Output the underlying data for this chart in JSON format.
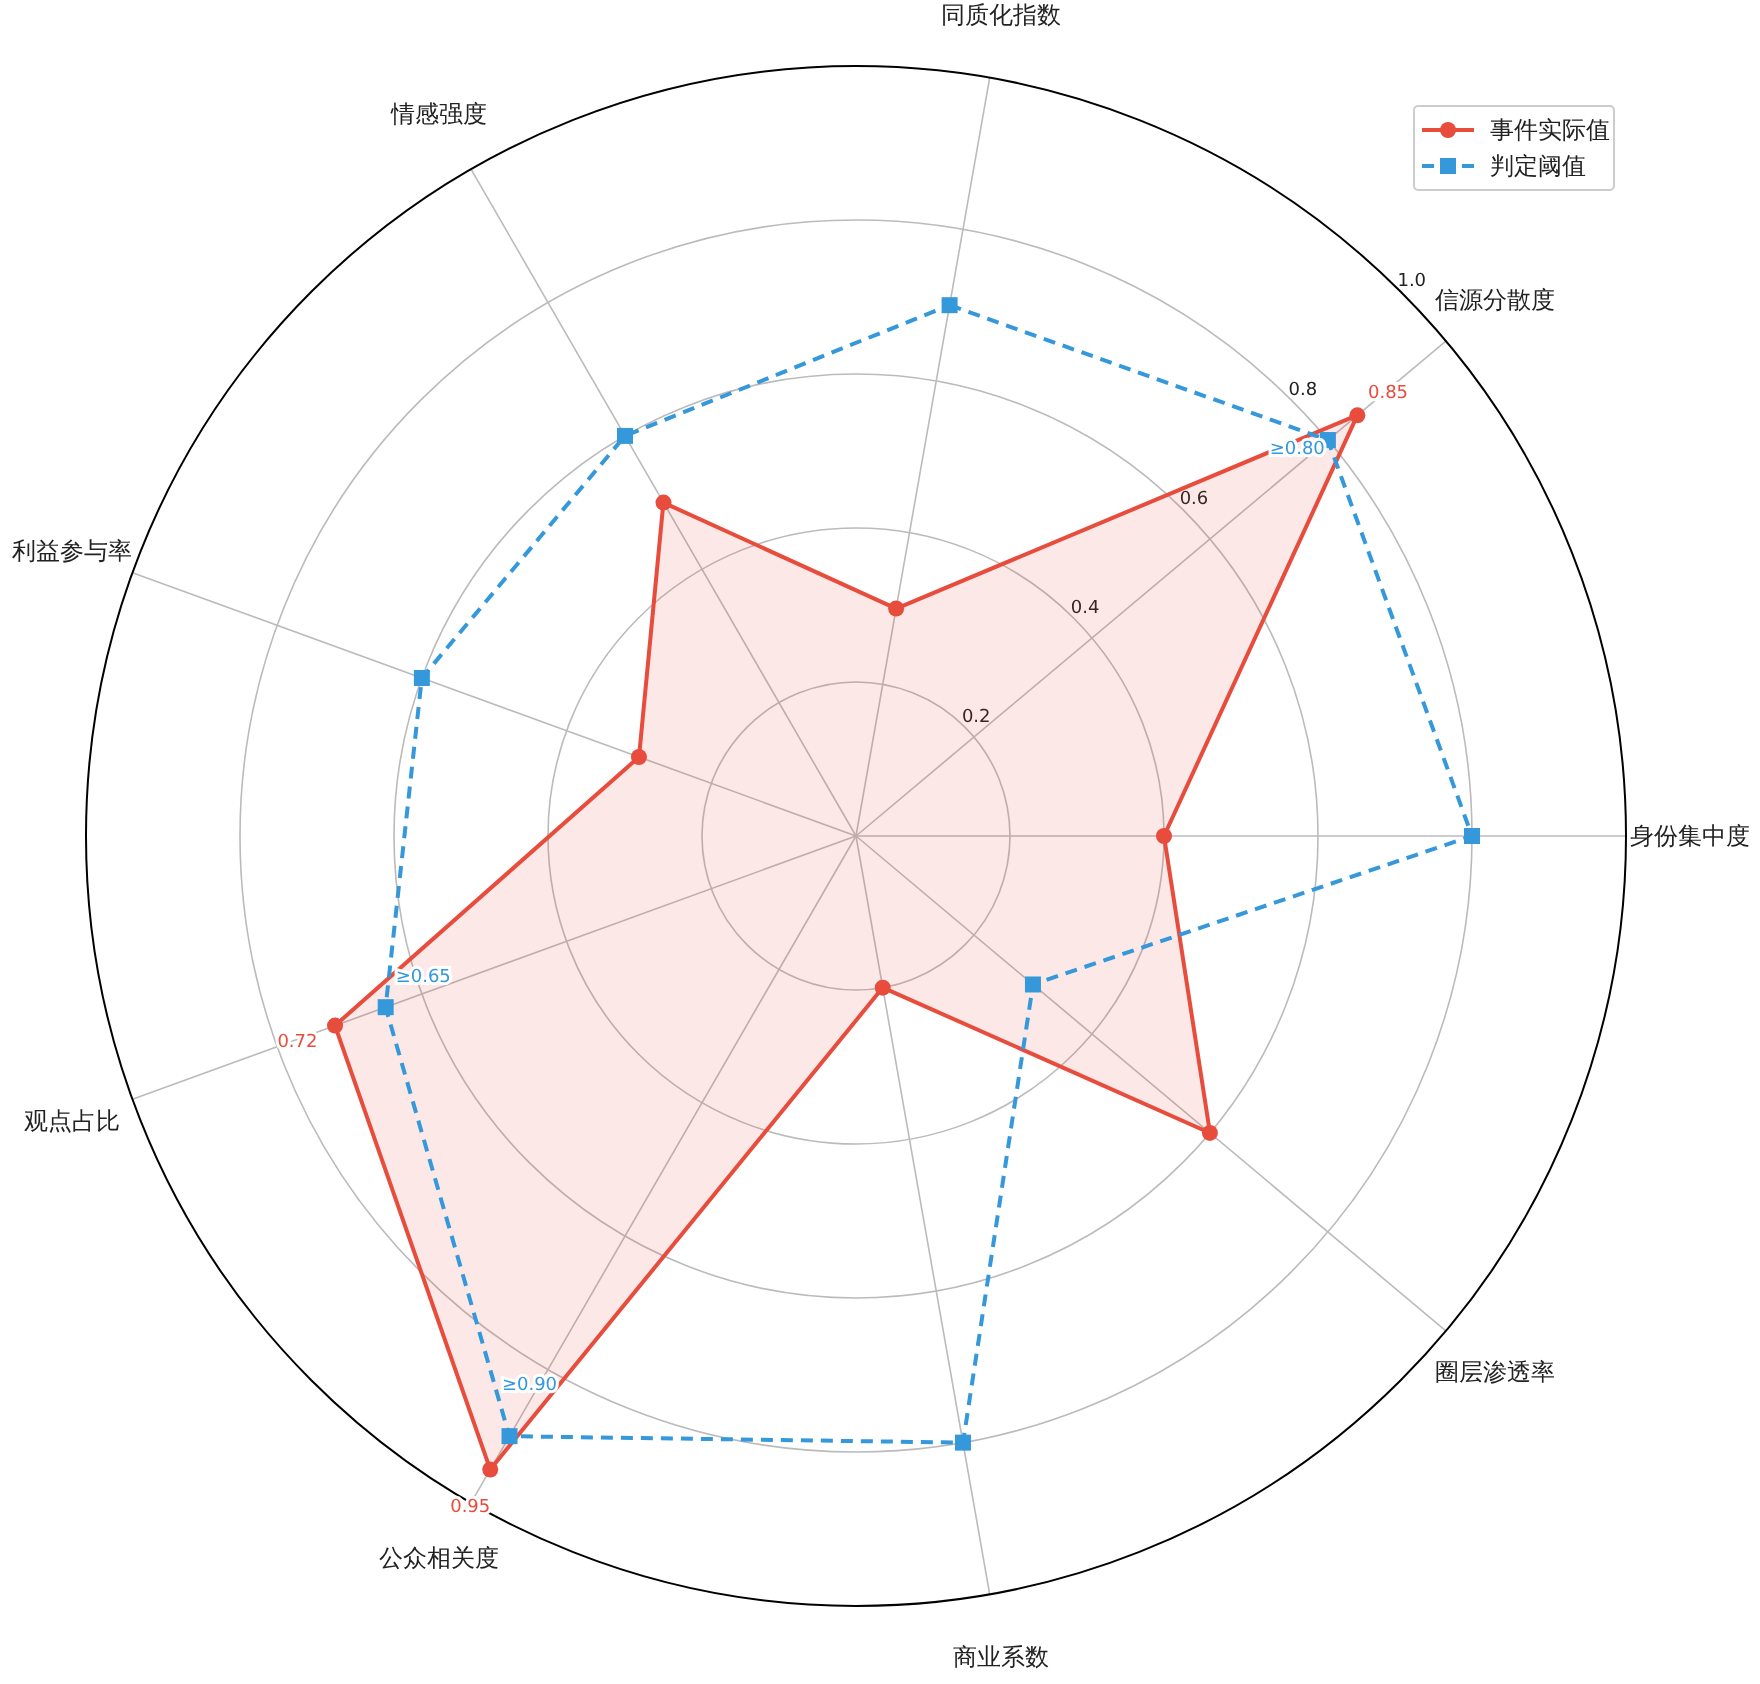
{
  "chart_data": {
    "type": "radar",
    "categories": [
      "同质化指数",
      "信源分散度",
      "身份集中度",
      "圈层渗透率",
      "商业系数",
      "公众相关度",
      "观点占比",
      "利益参与率",
      "情感强度"
    ],
    "series": [
      {
        "name": "事件实际值",
        "color": "#e74c3c",
        "marker": "circle",
        "line_style": "solid",
        "values": [
          0.3,
          0.85,
          0.4,
          0.6,
          0.2,
          0.95,
          0.72,
          0.3,
          0.5
        ],
        "value_labels": [
          null,
          "0.85",
          null,
          null,
          null,
          "0.95",
          "0.72",
          null,
          null
        ]
      },
      {
        "name": "判定阈值",
        "color": "#3498db",
        "marker": "square",
        "line_style": "dashed",
        "values": [
          0.7,
          0.8,
          0.8,
          0.3,
          0.8,
          0.9,
          0.65,
          0.6,
          0.6
        ],
        "value_labels": [
          null,
          "≥0.80",
          null,
          null,
          null,
          "≥0.90",
          "≥0.65",
          null,
          null
        ]
      }
    ],
    "ylim": [
      0,
      1
    ],
    "yticks": [
      0.2,
      0.4,
      0.6,
      0.8,
      {
        "value": 1,
        "label": "1.0"
      }
    ],
    "grid": true,
    "legend": "top right"
  }
}
